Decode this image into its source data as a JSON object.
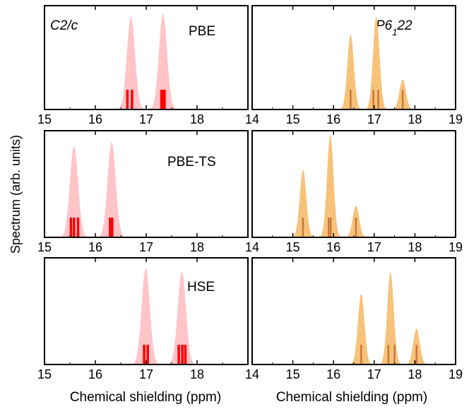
{
  "ylabel": "Spectrum (arb. units)",
  "colors": {
    "c2c_fill": "#ffc4c8",
    "c2c_stick": "#ff0000",
    "p6_fill": "#f7c27a",
    "p6_stick": "#c8783c"
  },
  "chart_data": [
    {
      "type": "area",
      "title": "C2/c",
      "method_label": "PBE",
      "xlabel": "",
      "xlim": [
        15,
        19
      ],
      "xticks": [
        "15",
        "16",
        "17",
        "18"
      ],
      "peaks": [
        {
          "center": 16.7,
          "height": 0.93
        },
        {
          "center": 17.33,
          "height": 0.96
        }
      ],
      "sticks": [
        16.63,
        16.72,
        17.3,
        17.33,
        17.36
      ]
    },
    {
      "type": "area",
      "title": "P6122",
      "method_label": "",
      "xlabel": "",
      "xlim": [
        14,
        19
      ],
      "xticks": [
        "14",
        "15",
        "16",
        "17",
        "18",
        "19"
      ],
      "peaks": [
        {
          "center": 16.42,
          "height": 0.75
        },
        {
          "center": 17.05,
          "height": 0.93
        },
        {
          "center": 17.7,
          "height": 0.3
        }
      ],
      "sticks": [
        16.42,
        16.98,
        17.1,
        17.7
      ]
    },
    {
      "type": "area",
      "title": "",
      "method_label": "PBE-TS",
      "xlabel": "",
      "xlim": [
        15,
        19
      ],
      "xticks": [
        "15",
        "16",
        "17",
        "18"
      ],
      "peaks": [
        {
          "center": 15.58,
          "height": 0.89
        },
        {
          "center": 16.32,
          "height": 0.93
        }
      ],
      "sticks": [
        15.52,
        15.58,
        15.66,
        16.29,
        16.33
      ]
    },
    {
      "type": "area",
      "title": "",
      "method_label": "",
      "xlabel": "",
      "xlim": [
        14,
        19
      ],
      "xticks": [
        "14",
        "15",
        "16",
        "17",
        "18",
        "19"
      ],
      "peaks": [
        {
          "center": 15.25,
          "height": 0.66
        },
        {
          "center": 15.92,
          "height": 1.0
        },
        {
          "center": 16.55,
          "height": 0.31
        }
      ],
      "sticks": [
        15.25,
        15.88,
        15.93,
        16.55
      ]
    },
    {
      "type": "area",
      "title": "",
      "method_label": "HSE",
      "xlabel": "Chemical shielding (ppm)",
      "xlim": [
        15,
        19
      ],
      "xticks": [
        "15",
        "16",
        "17",
        "18"
      ],
      "peaks": [
        {
          "center": 16.99,
          "height": 0.94
        },
        {
          "center": 17.7,
          "height": 0.91
        }
      ],
      "sticks": [
        16.96,
        17.03,
        17.64,
        17.71,
        17.77
      ]
    },
    {
      "type": "area",
      "title": "",
      "method_label": "",
      "xlabel": "Chemical shielding (ppm)",
      "xlim": [
        14,
        19
      ],
      "xticks": [
        "14",
        "15",
        "16",
        "17",
        "18",
        "19"
      ],
      "peaks": [
        {
          "center": 16.68,
          "height": 0.69
        },
        {
          "center": 17.4,
          "height": 0.9
        },
        {
          "center": 18.04,
          "height": 0.35
        }
      ],
      "sticks": [
        16.68,
        17.35,
        17.5,
        18.04
      ]
    }
  ]
}
